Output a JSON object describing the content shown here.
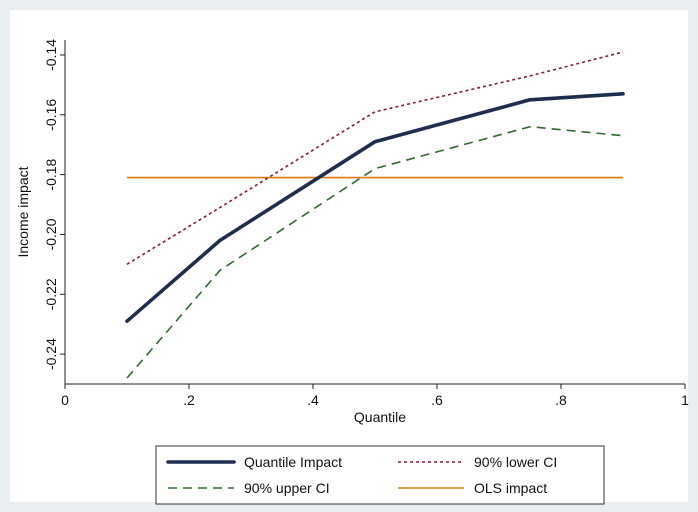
{
  "chart_data": {
    "type": "line",
    "xlabel": "Quantile",
    "ylabel": "Income impact",
    "xlim": [
      0,
      1
    ],
    "ylim": [
      -0.25,
      -0.135
    ],
    "x_ticks": [
      {
        "value": 0,
        "label": "0"
      },
      {
        "value": 0.2,
        "label": ".2"
      },
      {
        "value": 0.4,
        "label": ".4"
      },
      {
        "value": 0.6,
        "label": ".6"
      },
      {
        "value": 0.8,
        "label": ".8"
      },
      {
        "value": 1,
        "label": "1"
      }
    ],
    "y_ticks": [
      {
        "value": -0.24,
        "label": "-0.24"
      },
      {
        "value": -0.22,
        "label": "-0.22"
      },
      {
        "value": -0.2,
        "label": "-0.20"
      },
      {
        "value": -0.18,
        "label": "-0.18"
      },
      {
        "value": -0.16,
        "label": "-0.16"
      },
      {
        "value": -0.14,
        "label": "-0.14"
      }
    ],
    "grid": false,
    "legend_position": "bottom",
    "series": [
      {
        "name": "Quantile Impact",
        "color": "#1f2d4e",
        "style": "solid-thick",
        "x": [
          0.1,
          0.25,
          0.5,
          0.75,
          0.9
        ],
        "y": [
          -0.229,
          -0.202,
          -0.169,
          -0.155,
          -0.153
        ]
      },
      {
        "name": "90% lower CI",
        "color": "#8b1a2b",
        "style": "dotted",
        "x": [
          0.1,
          0.25,
          0.5,
          0.75,
          0.9
        ],
        "y": [
          -0.21,
          -0.191,
          -0.159,
          -0.147,
          -0.139
        ]
      },
      {
        "name": "90% upper CI",
        "color": "#2e6b2e",
        "style": "dashed",
        "x": [
          0.1,
          0.25,
          0.5,
          0.75,
          0.9
        ],
        "y": [
          -0.248,
          -0.212,
          -0.178,
          -0.164,
          -0.167
        ]
      },
      {
        "name": "OLS impact",
        "color": "#e07a10",
        "style": "solid",
        "x": [
          0.1,
          0.9
        ],
        "y": [
          -0.181,
          -0.181
        ]
      }
    ],
    "colors": {
      "outer_background": "#e9eef1",
      "plot_background": "#ffffff",
      "axis": "#222222"
    }
  }
}
